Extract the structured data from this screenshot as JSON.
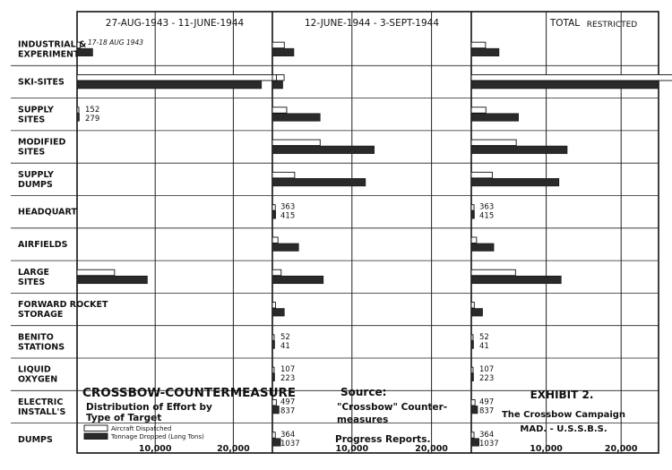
{
  "chart_data": {
    "type": "bar",
    "title": "CROSSBOW-COUNTERMEASURE",
    "subtitle_lines": [
      "Distribution of Effort by",
      "Type of Target"
    ],
    "restricted_stamp": "RESTRICTED",
    "exhibit": "EXHIBIT 2.",
    "exhibit_lines": [
      "The Crossbow Campaign",
      "MAD. - U.S.S.B.S."
    ],
    "source_lines": [
      "Source:",
      "\"Crossbow\" Counter-",
      "measures",
      "Progress Reports."
    ],
    "categories": [
      "INDUSTRIAL & EXPERIMENT",
      "SKI-SITES",
      "SUPPLY SITES",
      "MODIFIED SITES",
      "SUPPLY DUMPS",
      "HEADQUART",
      "AIRFIELDS",
      "LARGE SITES",
      "FORWARD ROCKET STORAGE",
      "BENITO STATIONS",
      "LIQUID OXYGEN",
      "ELECTRIC INSTALL'S",
      "DUMPS"
    ],
    "legend": [
      {
        "label": "Aircraft Dispatched",
        "color": "#ffffff"
      },
      {
        "label": "Tonnage Dropped (Long Tons)",
        "color": "#2a2a2a"
      }
    ],
    "panels": [
      {
        "header": "27-AUG-1943 - 11-JUNE-1944",
        "xlim": [
          0,
          25000
        ],
        "ticks": [
          10000,
          20000
        ],
        "tick_labels": [
          "10,000",
          "20,000"
        ],
        "annotations": [
          {
            "category": "INDUSTRIAL & EXPERIMENT",
            "text": "17-18 AUG 1943"
          },
          {
            "category": "SUPPLY SITES",
            "aircraft_text": "152",
            "tonnage_text": "279"
          }
        ],
        "aircraft": [
          400,
          26500,
          152,
          0,
          0,
          0,
          0,
          4800,
          0,
          0,
          0,
          0,
          0
        ],
        "tonnage": [
          2000,
          23600,
          279,
          0,
          0,
          0,
          0,
          9000,
          0,
          0,
          0,
          0,
          0
        ]
      },
      {
        "header": "12-JUNE-1944 - 3-SEPT-1944",
        "xlim": [
          0,
          25000
        ],
        "ticks": [
          10000,
          20000
        ],
        "tick_labels": [
          "10,000",
          "20,000"
        ],
        "annotations": [
          {
            "category": "HEADQUART",
            "aircraft_text": "363",
            "tonnage_text": "415"
          },
          {
            "category": "BENITO STATIONS",
            "aircraft_text": "52",
            "tonnage_text": "41"
          },
          {
            "category": "LIQUID OXYGEN",
            "aircraft_text": "107",
            "tonnage_text": "223"
          },
          {
            "category": "ELECTRIC INSTALL'S",
            "aircraft_text": "497",
            "tonnage_text": "837"
          },
          {
            "category": "DUMPS",
            "aircraft_text": "364",
            "tonnage_text": "1037"
          }
        ],
        "aircraft": [
          1500,
          500,
          1800,
          6000,
          2800,
          363,
          700,
          1100,
          400,
          52,
          107,
          497,
          364
        ],
        "tonnage": [
          2700,
          1300,
          6000,
          12800,
          11700,
          415,
          3300,
          6400,
          1500,
          41,
          223,
          837,
          1037
        ]
      },
      {
        "header": "TOTAL",
        "xlim": [
          0,
          25000
        ],
        "ticks": [
          10000,
          20000
        ],
        "tick_labels": [
          "10,000",
          "20,000"
        ],
        "annotations": [
          {
            "category": "HEADQUART",
            "aircraft_text": "363",
            "tonnage_text": "415"
          },
          {
            "category": "BENITO STATIONS",
            "aircraft_text": "52",
            "tonnage_text": "41"
          },
          {
            "category": "LIQUID OXYGEN",
            "aircraft_text": "107",
            "tonnage_text": "223"
          },
          {
            "category": "ELECTRIC INSTALL'S",
            "aircraft_text": "497",
            "tonnage_text": "837"
          },
          {
            "category": "DUMPS",
            "aircraft_text": "364",
            "tonnage_text": "1037"
          }
        ],
        "aircraft": [
          1900,
          27000,
          1950,
          6000,
          2800,
          363,
          700,
          5900,
          400,
          52,
          107,
          497,
          364
        ],
        "tonnage": [
          3700,
          25000,
          6300,
          12800,
          11700,
          415,
          3000,
          12000,
          1500,
          41,
          223,
          837,
          1037
        ]
      }
    ]
  }
}
